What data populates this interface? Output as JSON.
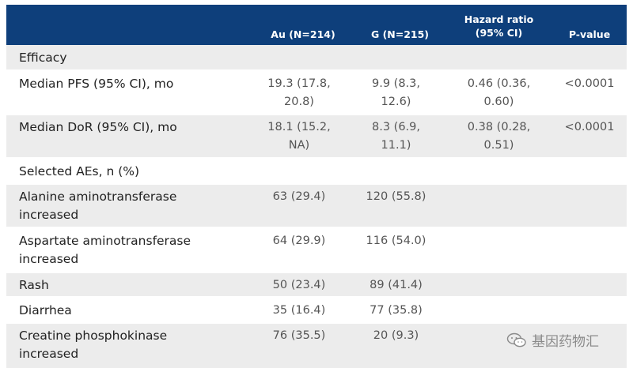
{
  "header": {
    "col_au": "Au (N=214)",
    "col_g": "G (N=215)",
    "col_hr_line1": "Hazard ratio",
    "col_hr_line2": "(95% CI)",
    "col_p": "P-value"
  },
  "rows": [
    {
      "label": "Efficacy"
    },
    {
      "label": "Median PFS (95% CI), mo",
      "au": [
        "19.3 (17.8,",
        "20.8)"
      ],
      "g": [
        "9.9 (8.3,",
        "12.6)"
      ],
      "hr": [
        "0.46 (0.36,",
        "0.60)"
      ],
      "p": "<0.0001"
    },
    {
      "label": "Median DoR (95% CI), mo",
      "au": [
        "18.1 (15.2,",
        "NA)"
      ],
      "g": [
        "8.3 (6.9,",
        "11.1)"
      ],
      "hr": [
        "0.38 (0.28,",
        "0.51)"
      ],
      "p": "<0.0001"
    },
    {
      "label": "Selected AEs, n (%)"
    },
    {
      "label": [
        "Alanine aminotransferase",
        "increased"
      ],
      "au": "63 (29.4)",
      "g": "120 (55.8)"
    },
    {
      "label": [
        "Aspartate aminotransferase",
        "increased"
      ],
      "au": "64 (29.9)",
      "g": "116 (54.0)"
    },
    {
      "label": "Rash",
      "au": "50 (23.4)",
      "g": "89 (41.4)"
    },
    {
      "label": "Diarrhea",
      "au": "35 (16.4)",
      "g": "77 (35.8)"
    },
    {
      "label": [
        "Creatine phosphokinase",
        "increased"
      ],
      "au": "76 (35.5)",
      "g": "20 (9.3)"
    }
  ],
  "watermark": {
    "text": "基因药物汇",
    "icon": "wechat-icon"
  }
}
